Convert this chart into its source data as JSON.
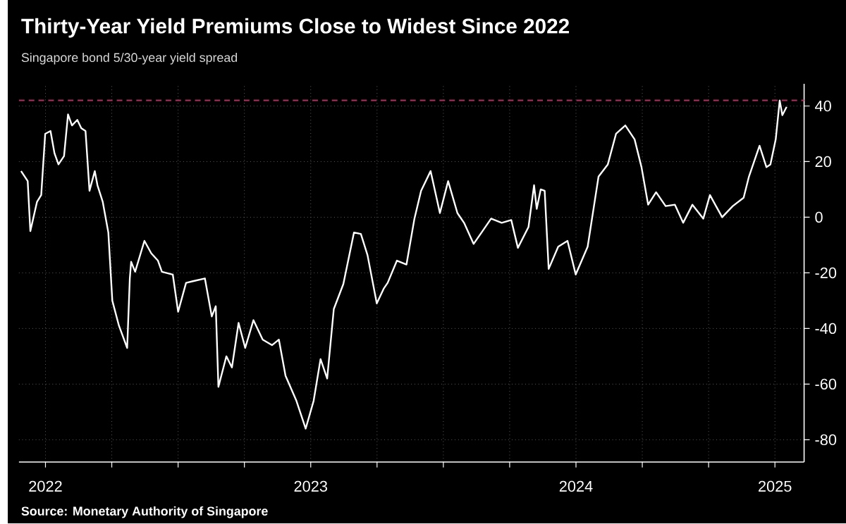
{
  "chart_data": {
    "type": "line",
    "title": "Thirty-Year Yield Premiums Close to Widest Since 2022",
    "subtitle": "Singapore bond 5/30-year yield spread",
    "annotations": [
      "Source: Monetary Authority of Singapore"
    ],
    "x": [
      2022.408,
      2022.433,
      2022.443,
      2022.468,
      2022.484,
      2022.499,
      2022.519,
      2022.534,
      2022.549,
      2022.57,
      2022.585,
      2022.6,
      2022.62,
      2022.635,
      2022.651,
      2022.666,
      2022.686,
      2022.696,
      2022.716,
      2022.737,
      2022.752,
      2022.777,
      2022.808,
      2022.818,
      2022.823,
      2022.838,
      2022.873,
      2022.899,
      2022.924,
      2022.939,
      2022.98,
      2023.0,
      2023.03,
      2023.056,
      2023.101,
      2023.127,
      2023.142,
      2023.152,
      2023.182,
      2023.203,
      2023.228,
      2023.253,
      2023.284,
      2023.319,
      2023.354,
      2023.38,
      2023.405,
      2023.446,
      2023.481,
      2023.511,
      2023.537,
      2023.562,
      2023.587,
      2023.623,
      2023.663,
      2023.689,
      2023.714,
      2023.749,
      2023.775,
      2023.79,
      2023.825,
      2023.861,
      2023.891,
      2023.916,
      2023.952,
      2023.987,
      2024.018,
      2024.053,
      2024.078,
      2024.114,
      2024.144,
      2024.18,
      2024.22,
      2024.256,
      2024.281,
      2024.321,
      2024.342,
      2024.352,
      2024.367,
      2024.382,
      2024.397,
      2024.433,
      2024.468,
      2024.499,
      2024.544,
      2024.585,
      2024.62,
      2024.651,
      2024.686,
      2024.721,
      2024.747,
      2024.772,
      2024.802,
      2024.838,
      2024.873,
      2024.904,
      2024.939,
      2024.98,
      2025.005,
      2025.051,
      2025.091,
      2025.132,
      2025.152,
      2025.192,
      2025.218,
      2025.233,
      2025.253,
      2025.268,
      2025.278,
      2025.294
    ],
    "series": [
      {
        "color": "#ffffff",
        "values": [
          16.6,
          13,
          -5,
          5.5,
          8,
          30,
          31,
          23,
          19,
          22,
          37,
          33,
          35,
          32,
          31,
          9.5,
          16.6,
          11.5,
          5.5,
          -5.5,
          -30,
          -39,
          -47,
          -22,
          -16,
          -19.6,
          -8.5,
          -13,
          -15.6,
          -19.6,
          -20.6,
          -34,
          -23.6,
          -23,
          -22,
          -35.7,
          -32,
          -61,
          -50,
          -54,
          -38,
          -47,
          -37,
          -44,
          -46,
          -44,
          -57,
          -66,
          -76,
          -66,
          -51,
          -58,
          -33,
          -24,
          -5.5,
          -6,
          -13.6,
          -31,
          -25.7,
          -23.6,
          -15.6,
          -17,
          -0.5,
          9.5,
          16.6,
          1.5,
          13,
          1.5,
          -2,
          -9.6,
          -5.5,
          -0.5,
          -2,
          -1,
          -11,
          -3.5,
          11.5,
          3,
          10,
          9.5,
          -18.6,
          -10.6,
          -8.5,
          -20.6,
          -10.6,
          14.6,
          19,
          30,
          33,
          28,
          18,
          4.5,
          9,
          4,
          4.5,
          -2,
          4.5,
          -0.5,
          8,
          0,
          4,
          7,
          14.6,
          25.7,
          18,
          19,
          28,
          42,
          36.7,
          39.7
        ]
      }
    ],
    "xlim": [
      2022.4,
      2025.36
    ],
    "ylim": [
      -88,
      48
    ],
    "xticks": [
      {
        "value": 2022.5,
        "label": "2022"
      },
      {
        "value": 2022.75,
        "label": null
      },
      {
        "value": 2023,
        "label": null
      },
      {
        "value": 2023.25,
        "label": null
      },
      {
        "value": 2023.5,
        "label": "2023"
      },
      {
        "value": 2023.75,
        "label": null
      },
      {
        "value": 2024,
        "label": null
      },
      {
        "value": 2024.25,
        "label": null
      },
      {
        "value": 2024.5,
        "label": "2024"
      },
      {
        "value": 2024.75,
        "label": null
      },
      {
        "value": 2025,
        "label": null
      },
      {
        "value": 2025.25,
        "label": "2025"
      }
    ],
    "yticks": [
      40,
      20,
      0,
      -20,
      -40,
      -60,
      -80
    ],
    "grid": true,
    "ref_lines": [
      {
        "axis": "y",
        "value": 42,
        "color": "#b03060",
        "line_style": "dashed"
      }
    ]
  }
}
